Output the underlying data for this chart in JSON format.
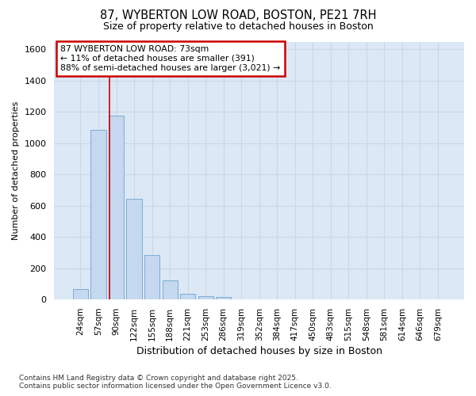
{
  "title_line1": "87, WYBERTON LOW ROAD, BOSTON, PE21 7RH",
  "title_line2": "Size of property relative to detached houses in Boston",
  "xlabel": "Distribution of detached houses by size in Boston",
  "ylabel": "Number of detached properties",
  "bar_labels": [
    "24sqm",
    "57sqm",
    "90sqm",
    "122sqm",
    "155sqm",
    "188sqm",
    "221sqm",
    "253sqm",
    "286sqm",
    "319sqm",
    "352sqm",
    "384sqm",
    "417sqm",
    "450sqm",
    "483sqm",
    "515sqm",
    "548sqm",
    "581sqm",
    "614sqm",
    "646sqm",
    "679sqm"
  ],
  "bar_values": [
    65,
    1085,
    1175,
    645,
    285,
    125,
    38,
    22,
    15,
    0,
    0,
    0,
    0,
    0,
    0,
    0,
    0,
    0,
    0,
    0,
    0
  ],
  "bar_color": "#c5d8ef",
  "bar_edgecolor": "#7aadd4",
  "vline_x": 1.62,
  "annotation_text": "87 WYBERTON LOW ROAD: 73sqm\n← 11% of detached houses are smaller (391)\n88% of semi-detached houses are larger (3,021) →",
  "annotation_box_facecolor": "#ffffff",
  "annotation_box_edgecolor": "#cc0000",
  "vline_color": "#cc0000",
  "ylim": [
    0,
    1650
  ],
  "yticks": [
    0,
    200,
    400,
    600,
    800,
    1000,
    1200,
    1400,
    1600
  ],
  "grid_color": "#c8d8e8",
  "background_color": "#ffffff",
  "plot_bg_color": "#dce8f5",
  "footer_line1": "Contains HM Land Registry data © Crown copyright and database right 2025.",
  "footer_line2": "Contains public sector information licensed under the Open Government Licence v3.0."
}
